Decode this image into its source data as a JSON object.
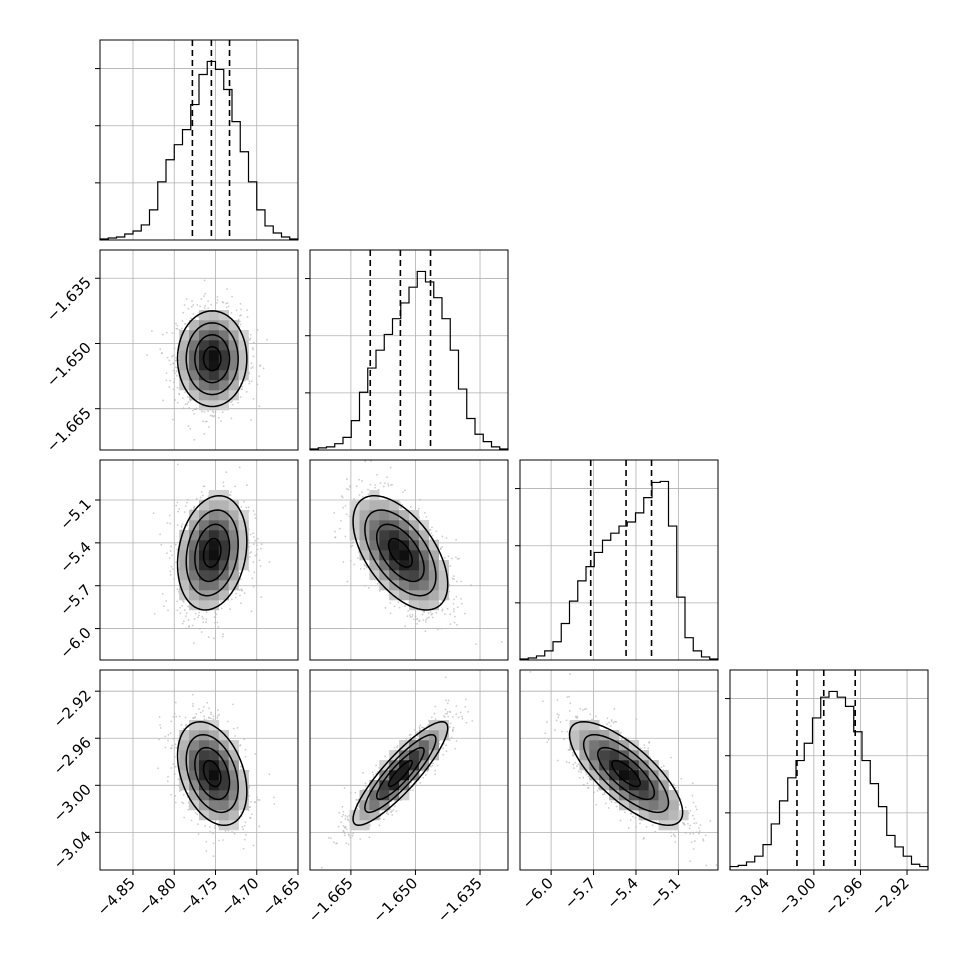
{
  "chart_data": {
    "type": "corner",
    "grid": true,
    "legend": "none",
    "colors": {
      "frame": "#000000",
      "grid": "#b0b0b0",
      "scatter": "#b8b8b8",
      "dens_dark": "#000000",
      "dens_light": "#ffffff"
    },
    "parameters": [
      {
        "range": [
          -4.89,
          -4.65
        ],
        "ticks": [
          -4.85,
          -4.8,
          -4.75,
          -4.7,
          -4.65
        ],
        "tick_labels": [
          "−4.85",
          "−4.80",
          "−4.75",
          "−4.70",
          "−4.65"
        ],
        "mean": -4.754,
        "sd": 0.021
      },
      {
        "range": [
          -1.6745,
          -1.6285
        ],
        "ticks": [
          -1.665,
          -1.65,
          -1.635
        ],
        "tick_labels": [
          "−1.665",
          "−1.650",
          "−1.635"
        ],
        "mean": -1.6535,
        "sd": 0.0055
      },
      {
        "range": [
          -6.22,
          -4.82
        ],
        "ticks": [
          -6.0,
          -5.7,
          -5.4,
          -5.1
        ],
        "tick_labels": [
          "−6.0",
          "−5.7",
          "−5.4",
          "−5.1"
        ],
        "mean": -5.47,
        "sd": 0.2
      },
      {
        "range": [
          -3.072,
          -2.902
        ],
        "ticks": [
          -3.04,
          -3.0,
          -2.96,
          -2.92
        ],
        "tick_labels": [
          "−3.04",
          "−3.00",
          "−2.96",
          "−2.92"
        ],
        "mean": -2.99,
        "sd": 0.022
      }
    ],
    "quantiles": [
      [
        -4.778,
        -4.755,
        -4.733
      ],
      [
        -1.6605,
        -1.6535,
        -1.6465
      ],
      [
        -5.72,
        -5.47,
        -5.29
      ],
      [
        -3.0145,
        -2.9915,
        -2.9645
      ]
    ],
    "histograms": [
      [
        1,
        2,
        3,
        6,
        9,
        15,
        30,
        58,
        80,
        95,
        110,
        135,
        165,
        178,
        170,
        150,
        118,
        88,
        58,
        30,
        14,
        7,
        3,
        1
      ],
      [
        1,
        2,
        3,
        6,
        12,
        28,
        55,
        78,
        95,
        110,
        125,
        140,
        155,
        170,
        160,
        145,
        125,
        95,
        58,
        30,
        15,
        8,
        3,
        1
      ],
      [
        1,
        2,
        4,
        9,
        18,
        36,
        58,
        78,
        92,
        106,
        118,
        125,
        132,
        136,
        145,
        160,
        175,
        176,
        132,
        62,
        22,
        9,
        3,
        1
      ],
      [
        3,
        4,
        7,
        12,
        22,
        40,
        60,
        80,
        95,
        110,
        132,
        150,
        155,
        150,
        142,
        120,
        95,
        75,
        55,
        30,
        20,
        12,
        5,
        3
      ]
    ],
    "pairs": [
      {
        "x": 0,
        "y": 1,
        "rho": 0.0
      },
      {
        "x": 0,
        "y": 2,
        "rho": 0.2
      },
      {
        "x": 1,
        "y": 2,
        "rho": -0.55
      },
      {
        "x": 0,
        "y": 3,
        "rho": -0.35
      },
      {
        "x": 1,
        "y": 3,
        "rho": 0.88
      },
      {
        "x": 2,
        "y": 3,
        "rho": -0.75
      }
    ],
    "contour_levels_sigma": [
      0.5,
      1.0,
      1.5,
      2.0
    ]
  }
}
